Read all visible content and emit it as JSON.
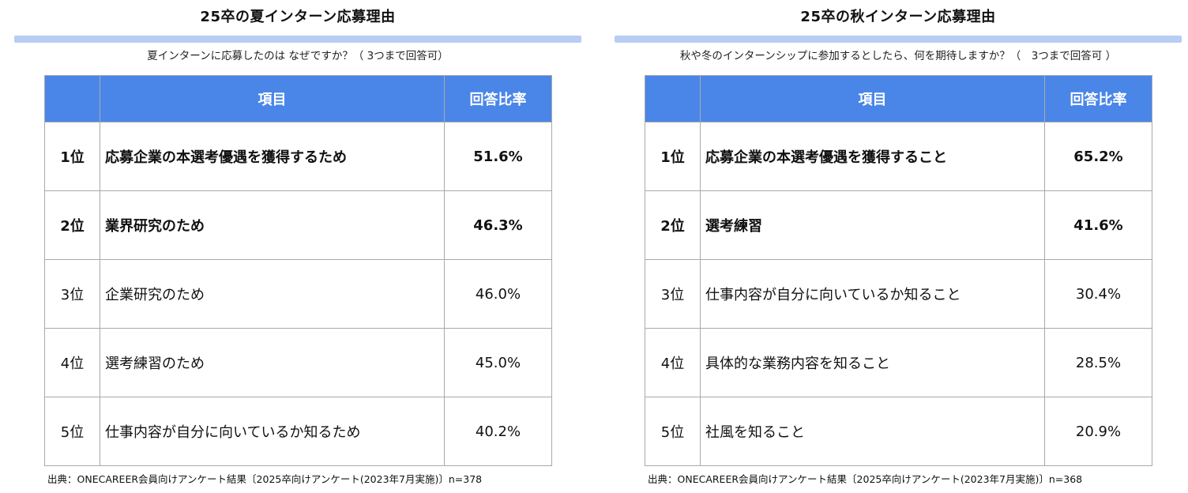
{
  "left": {
    "title": "25卒の夏インターン応募理由",
    "subtitle": "夏インターンに応募したのは なぜですか？（ 3つまで回答可）",
    "headers": {
      "rank": "",
      "item": "項目",
      "rate": "回答比率"
    },
    "rows": [
      {
        "rank": "1位",
        "item": "応募企業の本選考優遇を獲得するため",
        "rate": "51.6%"
      },
      {
        "rank": "2位",
        "item": "業界研究のため",
        "rate": "46.3%"
      },
      {
        "rank": "3位",
        "item": "企業研究のため",
        "rate": "46.0%"
      },
      {
        "rank": "4位",
        "item": "選考練習のため",
        "rate": "45.0%"
      },
      {
        "rank": "5位",
        "item": "仕事内容が自分に向いているか知るため",
        "rate": "40.2%"
      }
    ],
    "source": "出典：ONECAREER会員向けアンケート結果〔2025卒向けアンケート(2023年7月実施)〕n=378"
  },
  "right": {
    "title": "25卒の秋インターン応募理由",
    "subtitle": "秋や冬のインターンシップに参加するとしたら、何を期待しますか？（　3つまで回答可 ）",
    "headers": {
      "rank": "",
      "item": "項目",
      "rate": "回答比率"
    },
    "rows": [
      {
        "rank": "1位",
        "item": "応募企業の本選考優遇を獲得すること",
        "rate": "65.2%"
      },
      {
        "rank": "2位",
        "item": "選考練習",
        "rate": "41.6%"
      },
      {
        "rank": "3位",
        "item": "仕事内容が自分に向いているか知ること",
        "rate": "30.4%"
      },
      {
        "rank": "4位",
        "item": "具体的な業務内容を知ること",
        "rate": "28.5%"
      },
      {
        "rank": "5位",
        "item": "社風を知ること",
        "rate": "20.9%"
      }
    ],
    "source": "出典：ONECAREER会員向けアンケート結果〔2025卒向けアンケート(2023年7月実施)〕n=368"
  },
  "colors": {
    "header_bg": "#4a86e8",
    "title_bar": "#b7cdf2",
    "grid": "#a9a9a9"
  }
}
